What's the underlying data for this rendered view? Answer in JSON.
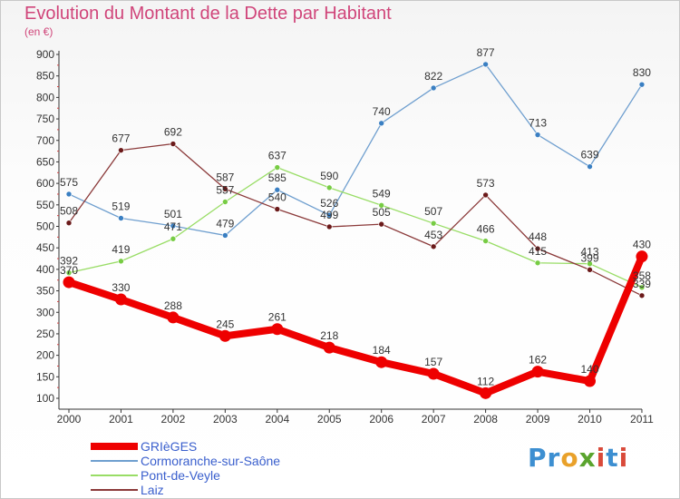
{
  "header": {
    "title": "Evolution du Montant de la Dette par Habitant",
    "unit": "(en €)"
  },
  "chart_data": {
    "type": "line",
    "title": "Evolution du Montant de la Dette par Habitant",
    "ylabel": "(en €)",
    "xlabel": "",
    "x": [
      "2000",
      "2001",
      "2002",
      "2003",
      "2004",
      "2005",
      "2006",
      "2007",
      "2008",
      "2009",
      "2010",
      "2011"
    ],
    "ylim": [
      100,
      900
    ],
    "yticks": [
      100,
      150,
      200,
      250,
      300,
      350,
      400,
      450,
      500,
      550,
      600,
      650,
      700,
      750,
      800,
      850,
      900
    ],
    "grid": false,
    "legend_position": "bottom-left",
    "series": [
      {
        "name": "GRIèGES",
        "color": "#ee0000",
        "bold": true,
        "values": [
          370,
          330,
          288,
          245,
          261,
          218,
          184,
          157,
          112,
          162,
          140,
          430
        ]
      },
      {
        "name": "Cormoranche-sur-Saône",
        "color": "#6f9fcf",
        "marker": "#3a7fc2",
        "bold": false,
        "values": [
          575,
          519,
          501,
          479,
          585,
          526,
          740,
          822,
          877,
          713,
          639,
          830
        ]
      },
      {
        "name": "Pont-de-Veyle",
        "color": "#99dd66",
        "marker": "#77cc44",
        "bold": false,
        "values": [
          392,
          419,
          471,
          557,
          637,
          590,
          549,
          507,
          466,
          415,
          413,
          358
        ]
      },
      {
        "name": "Laiz",
        "color": "#8b3a3a",
        "marker": "#6b1a1a",
        "bold": false,
        "values": [
          508,
          677,
          692,
          587,
          540,
          499,
          505,
          453,
          573,
          448,
          399,
          339
        ]
      }
    ]
  },
  "legend": {
    "items": [
      {
        "label": "GRIèGES"
      },
      {
        "label": "Cormoranche-sur-Saône"
      },
      {
        "label": "Pont-de-Veyle"
      },
      {
        "label": "Laiz"
      }
    ]
  },
  "brand": {
    "p1": "Pr",
    "o": "o",
    "x": "x",
    "i": "i",
    "t": "t",
    "i2": "i"
  }
}
